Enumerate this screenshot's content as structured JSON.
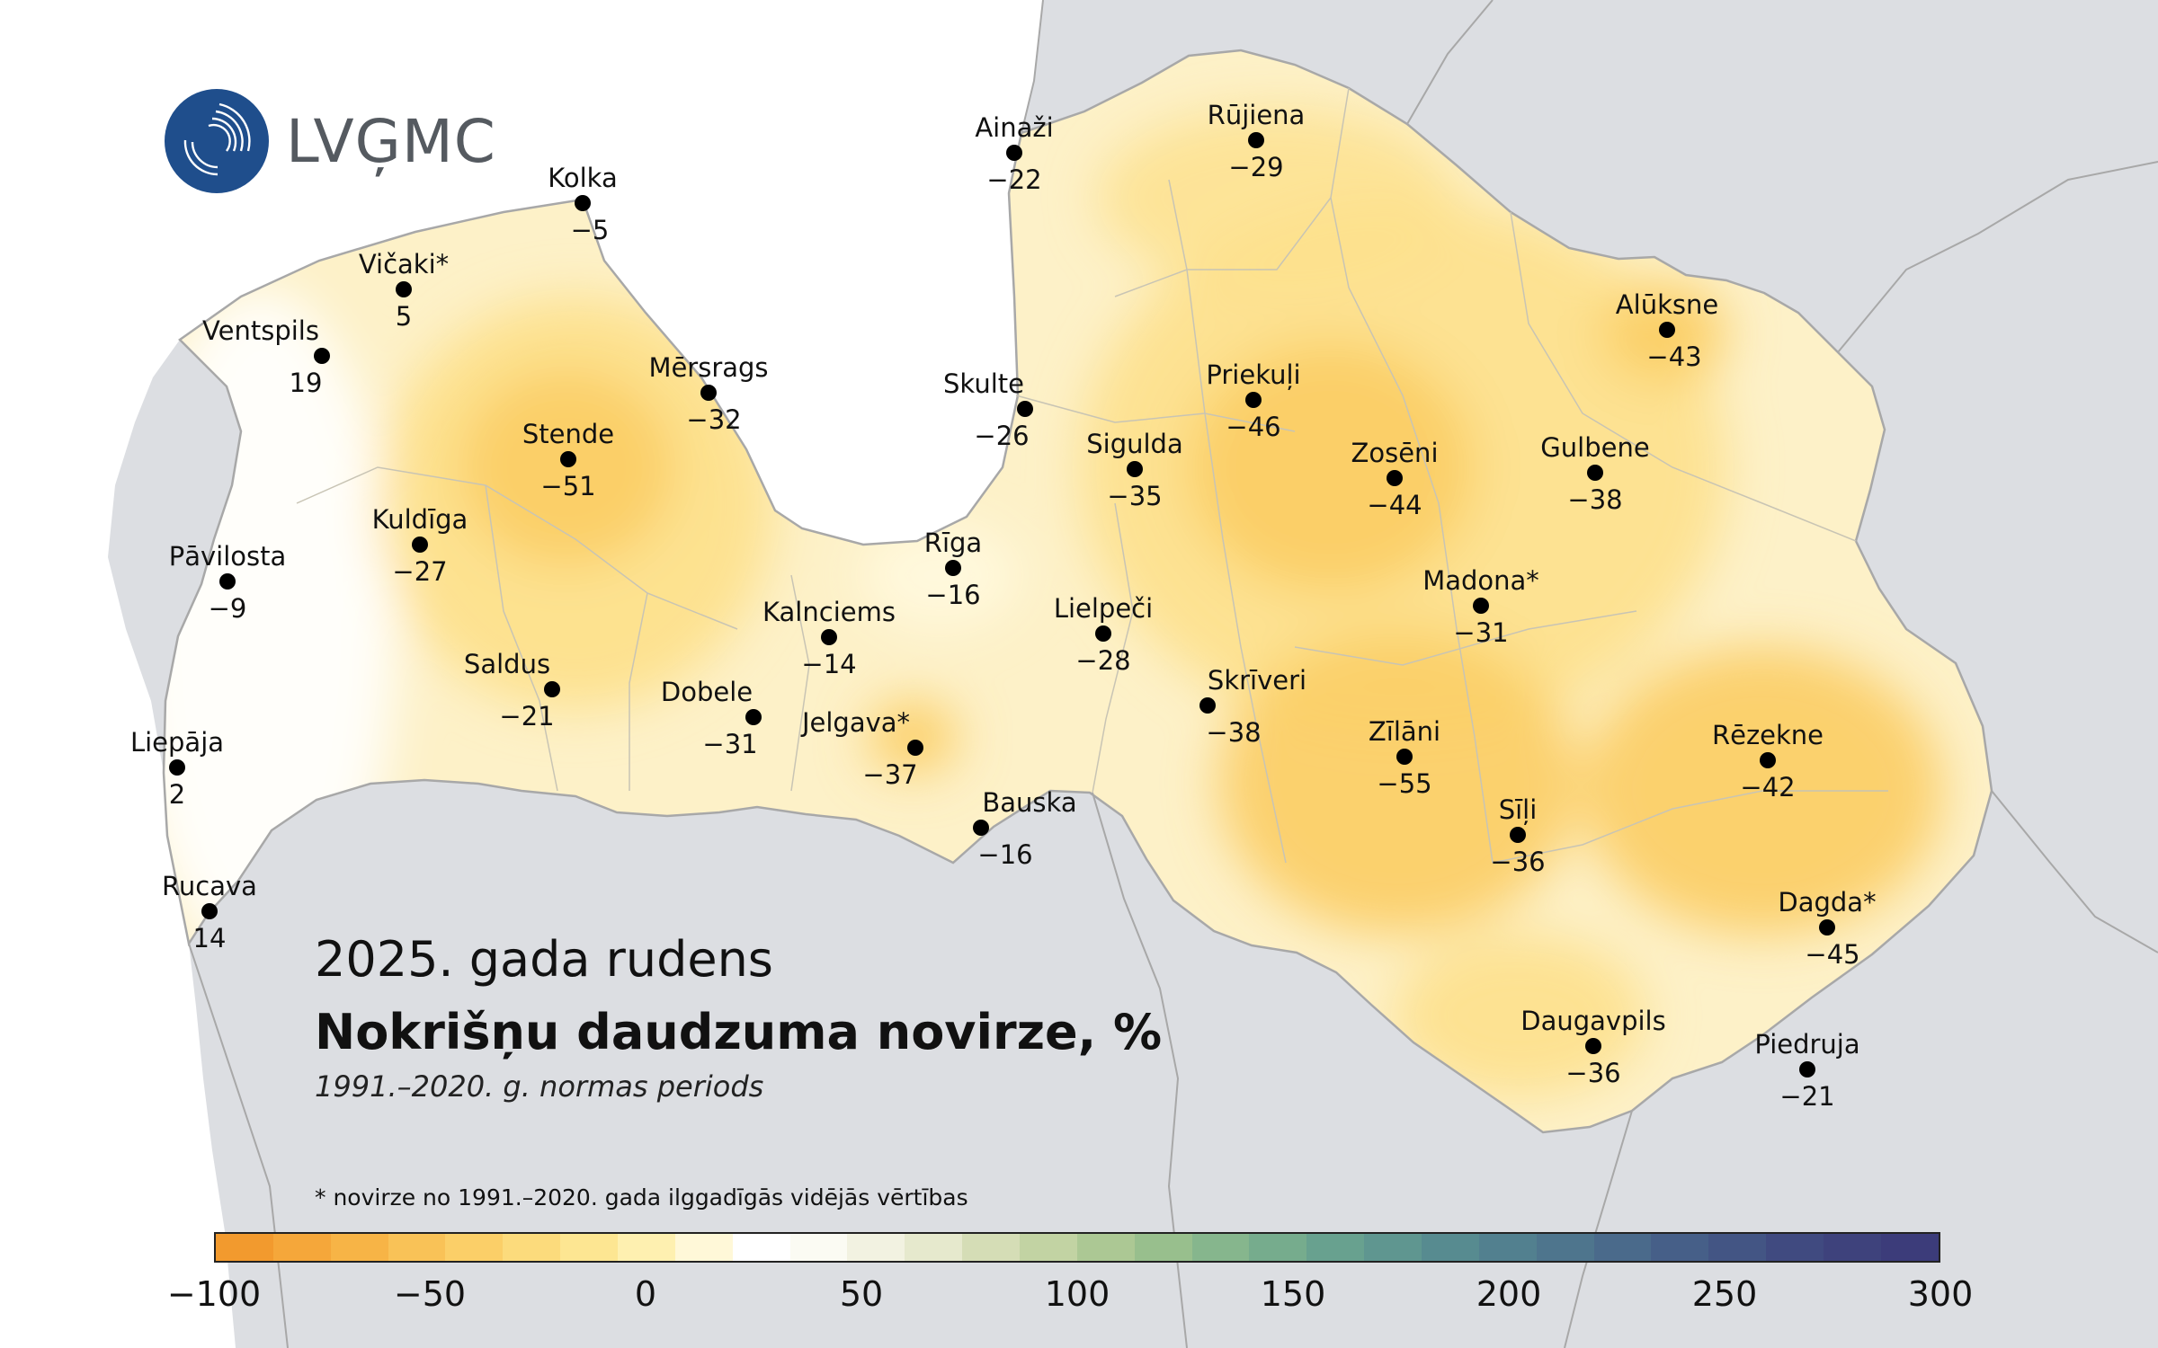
{
  "logo": {
    "text": "LVĢMC"
  },
  "title_block": {
    "season": "2025. gada rudens",
    "title": "Nokrišņu daudzuma novirze, %",
    "period": "1991.–2020. g. normas periods"
  },
  "footnote": "* novirze no 1991.–2020. gada ilggadīgās vidējās vērtības",
  "colors": {
    "sea": "#ffffff",
    "land_outside": "#dcdee2",
    "latvia_base": "#fdf1c8",
    "border": "#a8a8a8",
    "station_marker": "#000000"
  },
  "color_scale": {
    "min": -100,
    "max": 300,
    "tick_labels": [
      "−100",
      "−50",
      "0",
      "50",
      "100",
      "150",
      "200",
      "250",
      "300"
    ],
    "tick_values": [
      -100,
      -50,
      0,
      50,
      100,
      150,
      200,
      250,
      300
    ],
    "steps": [
      "#f29a2e",
      "#f5a73a",
      "#f7b446",
      "#f9c257",
      "#fbcf68",
      "#fcdb7c",
      "#fde692",
      "#fef0b0",
      "#fff8d8",
      "#ffffff",
      "#fbfbf3",
      "#f2f2e1",
      "#e6e9cd",
      "#d5ddb6",
      "#c2d3a3",
      "#acc894",
      "#98bf8d",
      "#86b68d",
      "#76ac8d",
      "#68a18f",
      "#5f9690",
      "#578b90",
      "#52808f",
      "#4e758d",
      "#4a6a8b",
      "#465f88",
      "#435584",
      "#404a80",
      "#3e427c",
      "#3c3c7a"
    ]
  },
  "stations": [
    {
      "name": "Kolka",
      "value": "−5"
    },
    {
      "name": "Vičaki*",
      "value": "5"
    },
    {
      "name": "Ventspils",
      "value": "19"
    },
    {
      "name": "Mērsrags",
      "value": "−32"
    },
    {
      "name": "Stende",
      "value": "−51"
    },
    {
      "name": "Kuldīga",
      "value": "−27"
    },
    {
      "name": "Pāvilosta",
      "value": "−9"
    },
    {
      "name": "Saldus",
      "value": "−21"
    },
    {
      "name": "Liepāja",
      "value": "2"
    },
    {
      "name": "Rucava",
      "value": "14"
    },
    {
      "name": "Ainaži",
      "value": "−22"
    },
    {
      "name": "Rūjiena",
      "value": "−29"
    },
    {
      "name": "Skulte",
      "value": "−26"
    },
    {
      "name": "Sigulda",
      "value": "−35"
    },
    {
      "name": "Priekuļi",
      "value": "−46"
    },
    {
      "name": "Alūksne",
      "value": "−43"
    },
    {
      "name": "Zosēni",
      "value": "−44"
    },
    {
      "name": "Gulbene",
      "value": "−38"
    },
    {
      "name": "Rīga",
      "value": "−16"
    },
    {
      "name": "Kalnciems",
      "value": "−14"
    },
    {
      "name": "Lielpeči",
      "value": "−28"
    },
    {
      "name": "Madona*",
      "value": "−31"
    },
    {
      "name": "Dobele",
      "value": "−31"
    },
    {
      "name": "Jelgava*",
      "value": "−37"
    },
    {
      "name": "Skrīveri",
      "value": "−38"
    },
    {
      "name": "Zīlāni",
      "value": "−55"
    },
    {
      "name": "Rēzekne",
      "value": "−42"
    },
    {
      "name": "Bauska",
      "value": "−16"
    },
    {
      "name": "Sīļi",
      "value": "−36"
    },
    {
      "name": "Dagda*",
      "value": "−45"
    },
    {
      "name": "Daugavpils",
      "value": "−36"
    },
    {
      "name": "Piedruja",
      "value": "−21"
    }
  ]
}
